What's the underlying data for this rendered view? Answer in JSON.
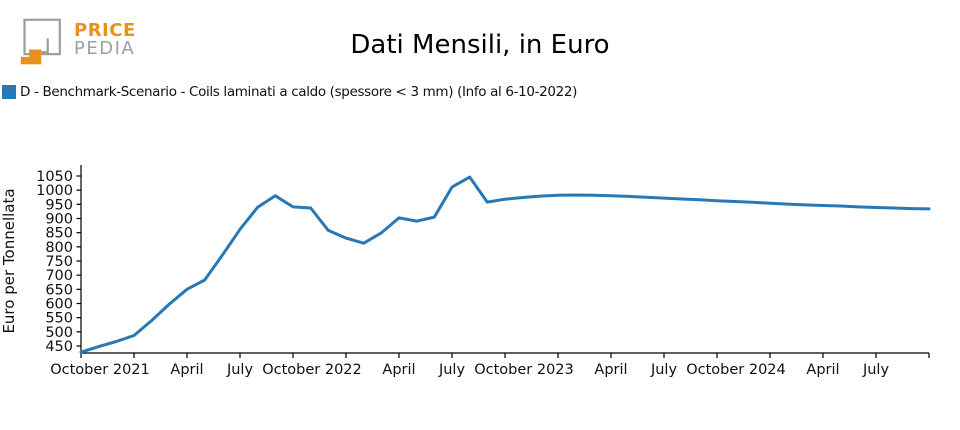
{
  "logo": {
    "brand_line1": "PRICE",
    "brand_line2": "PEDIA"
  },
  "header": {
    "title": "Dati Mensili, in Euro"
  },
  "legend": {
    "label": "D - Benchmark-Scenario - Coils laminati a caldo (spessore < 3 mm) (Info al 6-10-2022)",
    "swatch_color": "#2878b5"
  },
  "chart_data": {
    "type": "line",
    "title": "Dati Mensili, in Euro",
    "xlabel": "",
    "ylabel": "Euro per Tonnellata",
    "grid": false,
    "legend_position": "top-left-above-axes",
    "ylim": [
      415,
      1080
    ],
    "yticks": [
      450,
      500,
      550,
      600,
      650,
      700,
      750,
      800,
      850,
      900,
      950,
      1000,
      1050
    ],
    "x_ticks": [
      {
        "m": 0,
        "label": "October 2021"
      },
      {
        "m": 3,
        "label": ""
      },
      {
        "m": 6,
        "label": "April"
      },
      {
        "m": 9,
        "label": "July"
      },
      {
        "m": 12,
        "label": "October 2022"
      },
      {
        "m": 15,
        "label": ""
      },
      {
        "m": 18,
        "label": "April"
      },
      {
        "m": 21,
        "label": "July"
      },
      {
        "m": 24,
        "label": "October 2023"
      },
      {
        "m": 27,
        "label": ""
      },
      {
        "m": 30,
        "label": "April"
      },
      {
        "m": 33,
        "label": "July"
      },
      {
        "m": 36,
        "label": "October 2024"
      },
      {
        "m": 39,
        "label": ""
      },
      {
        "m": 42,
        "label": "April"
      },
      {
        "m": 45,
        "label": "July"
      },
      {
        "m": 48,
        "label": ""
      }
    ],
    "series": [
      {
        "name": "D - Benchmark-Scenario - Coils laminati a caldo (spessore < 3 mm) (Info al 6-10-2022)",
        "color": "#2878b5",
        "months": [
          "2021-10",
          "2021-11",
          "2021-12",
          "2022-01",
          "2022-02",
          "2022-03",
          "2022-04",
          "2022-05",
          "2022-06",
          "2022-07",
          "2022-08",
          "2022-09",
          "2022-10",
          "2022-11",
          "2022-12",
          "2023-01",
          "2023-02",
          "2023-03",
          "2023-04",
          "2023-05",
          "2023-06",
          "2023-07",
          "2023-08",
          "2023-09",
          "2023-10",
          "2023-11",
          "2023-12",
          "2024-01",
          "2024-02",
          "2024-03",
          "2024-04",
          "2024-05",
          "2024-06",
          "2024-07",
          "2024-08",
          "2024-09",
          "2024-10",
          "2024-11",
          "2024-12",
          "2025-01",
          "2025-02",
          "2025-03",
          "2025-04",
          "2025-05",
          "2025-06",
          "2025-07",
          "2025-08",
          "2025-09",
          "2025-10"
        ],
        "values": [
          428,
          448,
          466,
          487,
          540,
          598,
          650,
          683,
          770,
          862,
          940,
          980,
          941,
          937,
          858,
          831,
          813,
          849,
          902,
          891,
          905,
          1011,
          1046,
          958,
          968,
          974,
          979,
          982,
          983,
          982,
          980,
          978,
          975,
          972,
          969,
          966,
          963,
          960,
          957,
          954,
          951,
          948,
          946,
          944,
          941,
          939,
          937,
          935,
          934
        ]
      }
    ]
  }
}
